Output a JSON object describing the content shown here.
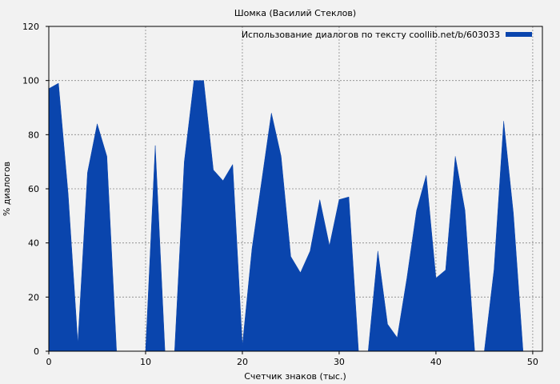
{
  "chart_data": {
    "type": "area",
    "title": "Шомка (Василий Стеклов)",
    "xlabel": "Счетчик знаков (тыс.)",
    "ylabel": "% диалогов",
    "xlim": [
      0,
      51
    ],
    "ylim": [
      0,
      120
    ],
    "x_ticks": [
      0,
      10,
      20,
      30,
      40,
      50
    ],
    "y_ticks": [
      0,
      20,
      40,
      60,
      80,
      100,
      120
    ],
    "grid": true,
    "legend_position": "top-right",
    "series": [
      {
        "name": "Использование диалогов по тексту coollib.net/b/603033",
        "color": "#0a45ad",
        "x": [
          0,
          1,
          2,
          3,
          4,
          5,
          6,
          7,
          8,
          9,
          10,
          11,
          12,
          13,
          14,
          15,
          16,
          17,
          18,
          19,
          20,
          21,
          22,
          23,
          24,
          25,
          26,
          27,
          28,
          29,
          30,
          31,
          32,
          33,
          34,
          35,
          36,
          37,
          38,
          39,
          40,
          41,
          42,
          43,
          44,
          45,
          46,
          47,
          48,
          49
        ],
        "y": [
          97,
          99,
          58,
          3,
          66,
          84,
          72,
          0,
          0,
          0,
          0,
          76,
          0,
          0,
          70,
          100,
          100,
          67,
          63,
          69,
          2,
          38,
          63,
          88,
          72,
          35,
          29,
          37,
          56,
          39,
          56,
          57,
          0,
          0,
          37,
          10,
          5,
          27,
          52,
          65,
          27,
          30,
          72,
          52,
          0,
          0,
          30,
          85,
          51,
          0
        ]
      }
    ]
  }
}
